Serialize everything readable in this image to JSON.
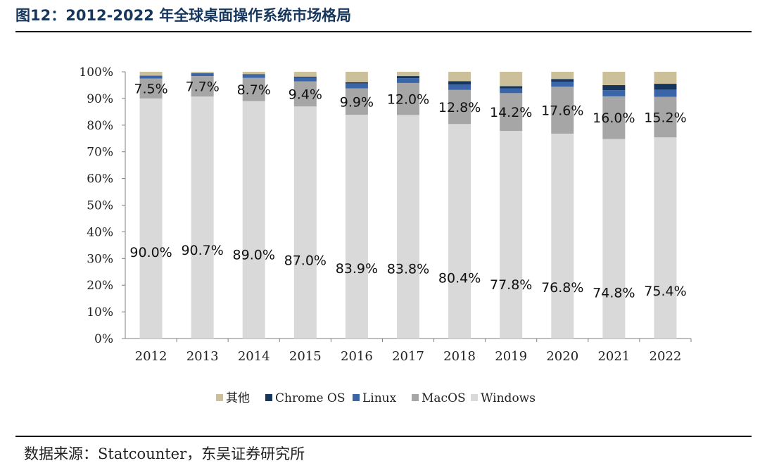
{
  "title": "图12：2012-2022 年全球桌面操作系统市场格局",
  "source": "数据来源：Statcounter，东吴证券研究所",
  "chart_data": {
    "type": "bar",
    "stacked": true,
    "percent_axis": true,
    "categories": [
      "2012",
      "2013",
      "2014",
      "2015",
      "2016",
      "2017",
      "2018",
      "2019",
      "2020",
      "2021",
      "2022"
    ],
    "yticks": [
      "0%",
      "10%",
      "20%",
      "30%",
      "40%",
      "50%",
      "60%",
      "70%",
      "80%",
      "90%",
      "100%"
    ],
    "ylim": [
      0,
      100
    ],
    "legend_position": "bottom",
    "series": [
      {
        "name": "Windows",
        "color": "#d9d9d9",
        "values": [
          90.0,
          90.7,
          89.0,
          87.0,
          83.9,
          83.8,
          80.4,
          77.8,
          76.8,
          74.8,
          75.4
        ],
        "labels": [
          "90.0%",
          "90.7%",
          "89.0%",
          "87.0%",
          "83.9%",
          "83.8%",
          "80.4%",
          "77.8%",
          "76.8%",
          "74.8%",
          "75.4%"
        ]
      },
      {
        "name": "MacOS",
        "color": "#a6a6a6",
        "values": [
          7.5,
          7.7,
          8.7,
          9.4,
          9.9,
          12.0,
          12.8,
          14.2,
          17.6,
          16.0,
          15.2
        ],
        "labels": [
          "7.5%",
          "7.7%",
          "8.7%",
          "9.4%",
          "9.9%",
          "12.0%",
          "12.8%",
          "14.2%",
          "17.6%",
          "16.0%",
          "15.2%"
        ]
      },
      {
        "name": "Linux",
        "color": "#3a65a8",
        "values": [
          1.0,
          1.0,
          1.2,
          1.5,
          1.8,
          1.8,
          2.0,
          1.8,
          1.9,
          2.3,
          2.7
        ]
      },
      {
        "name": "Chrome OS",
        "color": "#17365d",
        "values": [
          0.1,
          0.1,
          0.2,
          0.3,
          0.5,
          0.8,
          1.3,
          0.8,
          1.0,
          1.9,
          2.2
        ]
      },
      {
        "name": "其他",
        "color": "#ccc09a",
        "values": [
          1.4,
          0.5,
          0.9,
          1.8,
          3.9,
          1.6,
          3.5,
          5.4,
          2.7,
          5.0,
          4.5
        ]
      }
    ],
    "legend_order": [
      "其他",
      "Chrome OS",
      "Linux",
      "MacOS",
      "Windows"
    ]
  }
}
